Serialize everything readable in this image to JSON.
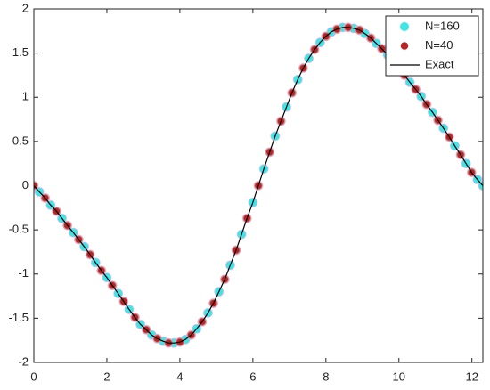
{
  "chart_data": {
    "type": "scatter",
    "x": [
      0,
      0.15,
      0.31,
      0.46,
      0.62,
      0.77,
      0.92,
      1.08,
      1.23,
      1.38,
      1.54,
      1.69,
      1.85,
      2.0,
      2.15,
      2.31,
      2.46,
      2.61,
      2.77,
      2.92,
      3.08,
      3.23,
      3.38,
      3.54,
      3.69,
      3.84,
      4.0,
      4.15,
      4.31,
      4.46,
      4.61,
      4.77,
      4.92,
      5.07,
      5.23,
      5.38,
      5.54,
      5.69,
      5.84,
      6.0,
      6.15,
      6.3,
      6.46,
      6.61,
      6.77,
      6.92,
      7.07,
      7.23,
      7.38,
      7.53,
      7.69,
      7.84,
      8.0,
      8.15,
      8.3,
      8.46,
      8.61,
      8.76,
      8.92,
      9.07,
      9.23,
      9.38,
      9.53,
      9.69,
      9.84,
      9.99,
      10.15,
      10.3,
      10.46,
      10.61,
      10.76,
      10.92,
      11.07,
      11.22,
      11.38,
      11.53,
      11.69,
      11.84,
      11.99,
      12.15,
      12.3
    ],
    "series": [
      {
        "name": "N=160",
        "color": "#3ee6e6",
        "mode": "markers",
        "values": [
          0,
          -0.07,
          -0.14,
          -0.22,
          -0.29,
          -0.37,
          -0.45,
          -0.53,
          -0.61,
          -0.69,
          -0.78,
          -0.87,
          -0.96,
          -1.04,
          -1.13,
          -1.22,
          -1.31,
          -1.4,
          -1.49,
          -1.57,
          -1.63,
          -1.69,
          -1.73,
          -1.76,
          -1.78,
          -1.78,
          -1.77,
          -1.74,
          -1.69,
          -1.62,
          -1.54,
          -1.44,
          -1.33,
          -1.2,
          -1.06,
          -0.9,
          -0.73,
          -0.55,
          -0.37,
          -0.19,
          0,
          0.19,
          0.38,
          0.56,
          0.73,
          0.89,
          1.05,
          1.2,
          1.33,
          1.44,
          1.54,
          1.62,
          1.69,
          1.74,
          1.77,
          1.79,
          1.79,
          1.78,
          1.76,
          1.72,
          1.67,
          1.61,
          1.55,
          1.48,
          1.4,
          1.33,
          1.25,
          1.17,
          1.09,
          1.01,
          0.92,
          0.83,
          0.74,
          0.65,
          0.55,
          0.45,
          0.35,
          0.25,
          0.15,
          0.07,
          0
        ]
      },
      {
        "name": "N=40",
        "color": "#b82424",
        "mode": "markers",
        "x": [
          0,
          0.31,
          0.62,
          0.92,
          1.23,
          1.54,
          1.85,
          2.15,
          2.46,
          2.77,
          3.08,
          3.38,
          3.69,
          4.0,
          4.31,
          4.61,
          4.92,
          5.23,
          5.54,
          5.84,
          6.15,
          6.46,
          6.77,
          7.07,
          7.38,
          7.69,
          8.0,
          8.3,
          8.61,
          8.92,
          9.23,
          9.53,
          9.84,
          10.15,
          10.46,
          10.76,
          11.07,
          11.38,
          11.69,
          11.99
        ],
        "values": [
          0,
          -0.14,
          -0.29,
          -0.45,
          -0.61,
          -0.78,
          -0.96,
          -1.13,
          -1.31,
          -1.49,
          -1.63,
          -1.73,
          -1.78,
          -1.77,
          -1.69,
          -1.54,
          -1.33,
          -1.06,
          -0.73,
          -0.37,
          0,
          0.38,
          0.73,
          1.05,
          1.33,
          1.54,
          1.69,
          1.77,
          1.79,
          1.76,
          1.67,
          1.55,
          1.4,
          1.25,
          1.09,
          0.92,
          0.74,
          0.55,
          0.35,
          0.15
        ]
      },
      {
        "name": "Exact",
        "color": "#000000",
        "mode": "line",
        "values": [
          0,
          -0.07,
          -0.14,
          -0.22,
          -0.29,
          -0.37,
          -0.45,
          -0.53,
          -0.61,
          -0.69,
          -0.78,
          -0.87,
          -0.96,
          -1.04,
          -1.13,
          -1.22,
          -1.31,
          -1.4,
          -1.49,
          -1.57,
          -1.63,
          -1.69,
          -1.73,
          -1.76,
          -1.78,
          -1.78,
          -1.77,
          -1.74,
          -1.69,
          -1.62,
          -1.54,
          -1.44,
          -1.33,
          -1.2,
          -1.06,
          -0.9,
          -0.73,
          -0.55,
          -0.37,
          -0.19,
          0,
          0.19,
          0.38,
          0.56,
          0.73,
          0.89,
          1.05,
          1.2,
          1.33,
          1.44,
          1.54,
          1.62,
          1.69,
          1.74,
          1.77,
          1.79,
          1.79,
          1.78,
          1.76,
          1.72,
          1.67,
          1.61,
          1.55,
          1.48,
          1.4,
          1.33,
          1.25,
          1.17,
          1.09,
          1.01,
          0.92,
          0.83,
          0.74,
          0.65,
          0.55,
          0.45,
          0.35,
          0.25,
          0.15,
          0.07,
          0
        ]
      }
    ],
    "xlim": [
      0,
      12.3
    ],
    "xticks": [
      0,
      2,
      4,
      6,
      8,
      10,
      12
    ],
    "ylim": [
      -2,
      2
    ],
    "yticks": [
      -2,
      -1.5,
      -1,
      -0.5,
      0,
      0.5,
      1,
      1.5,
      2
    ],
    "legend": "northeast"
  }
}
